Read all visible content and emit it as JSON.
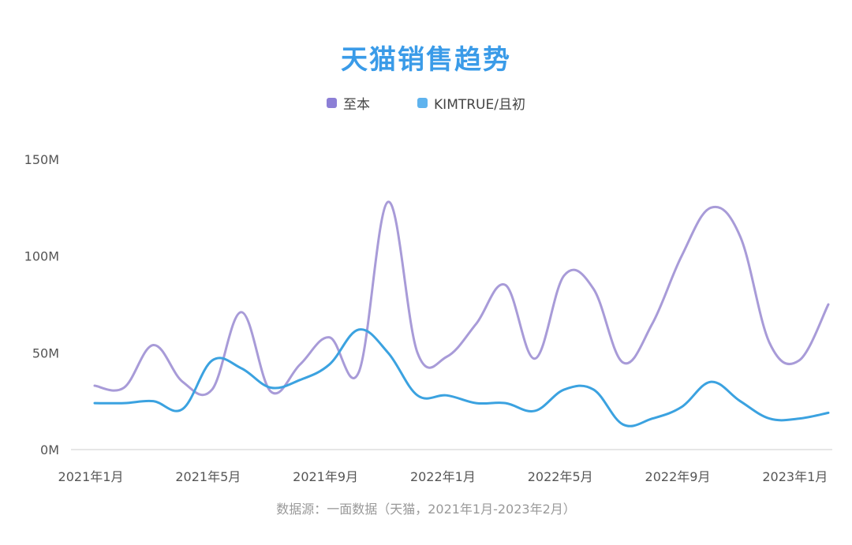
{
  "chart_data": {
    "type": "line",
    "title": "天猫销售趋势",
    "source": "数据源：一面数据（天猫，2021年1月-2023年2月）",
    "x": [
      "2021-01",
      "2021-02",
      "2021-03",
      "2021-04",
      "2021-05",
      "2021-06",
      "2021-07",
      "2021-08",
      "2021-09",
      "2021-10",
      "2021-11",
      "2021-12",
      "2022-01",
      "2022-02",
      "2022-03",
      "2022-04",
      "2022-05",
      "2022-06",
      "2022-07",
      "2022-08",
      "2022-09",
      "2022-10",
      "2022-11",
      "2022-12",
      "2023-01",
      "2023-02"
    ],
    "x_tick_labels": [
      "2021年1月",
      "2021年5月",
      "2021年9月",
      "2022年1月",
      "2022年5月",
      "2022年9月",
      "2023年1月"
    ],
    "x_tick_index": [
      0,
      4,
      8,
      12,
      16,
      20,
      24
    ],
    "y_tick_labels": [
      "0M",
      "50M",
      "100M",
      "150M"
    ],
    "ylim": [
      0,
      150
    ],
    "series": [
      {
        "name": "至本",
        "color": "#a89bd8",
        "values": [
          33,
          32,
          54,
          35,
          31,
          71,
          30,
          44,
          58,
          40,
          128,
          50,
          48,
          65,
          85,
          47,
          90,
          83,
          45,
          65,
          100,
          125,
          110,
          55,
          46,
          75
        ]
      },
      {
        "name": "KIMTRUE/且初",
        "color": "#3ba2e0",
        "values": [
          24,
          24,
          25,
          21,
          46,
          42,
          32,
          36,
          44,
          62,
          50,
          28,
          28,
          24,
          24,
          20,
          31,
          31,
          13,
          16,
          22,
          35,
          25,
          16,
          16,
          19
        ]
      }
    ],
    "grid": false,
    "legend_position": "top-center"
  },
  "legend": {
    "series1": "至本",
    "series2": "KIMTRUE/且初",
    "color1": "#8c7fd6",
    "color2": "#5fb3ee"
  }
}
